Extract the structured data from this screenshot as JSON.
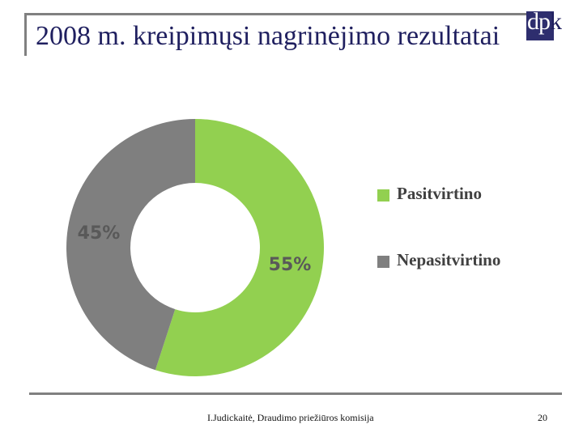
{
  "slide": {
    "title": "2008 m. kreipimųsi nagrinėjimo rezultatai",
    "logo": "dpk",
    "footer": "I.Judickaitė, Draudimo priežiūros komisija",
    "page_number": "20"
  },
  "chart_data": {
    "type": "pie",
    "donut": true,
    "categories": [
      "Pasitvirtino",
      "Nepasitvirtino"
    ],
    "values": [
      55,
      45
    ],
    "labels": [
      "55%",
      "45%"
    ],
    "colors": [
      "#92d050",
      "#7f7f7f"
    ],
    "label_color": "#595959",
    "legend_position": "right"
  }
}
